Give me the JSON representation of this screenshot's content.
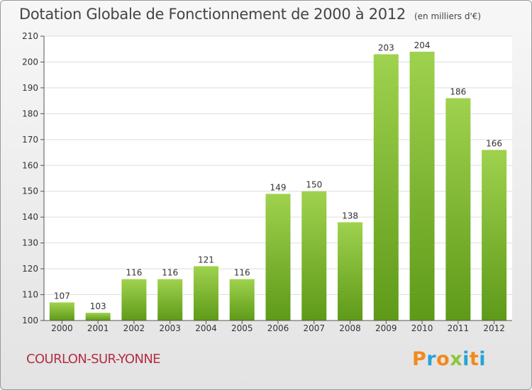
{
  "title": "Dotation Globale de Fonctionnement de 2000 à 2012",
  "subtitle": "(en milliers d'€)",
  "commune": "COURLON-SUR-YONNE",
  "logo": {
    "letters": [
      "P",
      "r",
      "o",
      "x",
      "i",
      "t",
      "i"
    ],
    "colors": [
      "#f08a1c",
      "#27a3d8",
      "#f08a1c",
      "#8cc63f",
      "#27a3d8",
      "#f08a1c",
      "#27a3d8"
    ]
  },
  "colors": {
    "bar_top": "#9fd24e",
    "bar_bottom": "#5e9a18",
    "axis": "#555555",
    "grid": "#dddddd"
  },
  "chart_data": {
    "type": "bar",
    "categories": [
      "2000",
      "2001",
      "2002",
      "2003",
      "2004",
      "2005",
      "2006",
      "2007",
      "2008",
      "2009",
      "2010",
      "2011",
      "2012"
    ],
    "values": [
      107,
      103,
      116,
      116,
      121,
      116,
      149,
      150,
      138,
      203,
      204,
      186,
      166
    ],
    "ylim": [
      100,
      210
    ],
    "yticks": [
      100,
      110,
      120,
      130,
      140,
      150,
      160,
      170,
      180,
      190,
      200,
      210
    ],
    "grid": true
  }
}
